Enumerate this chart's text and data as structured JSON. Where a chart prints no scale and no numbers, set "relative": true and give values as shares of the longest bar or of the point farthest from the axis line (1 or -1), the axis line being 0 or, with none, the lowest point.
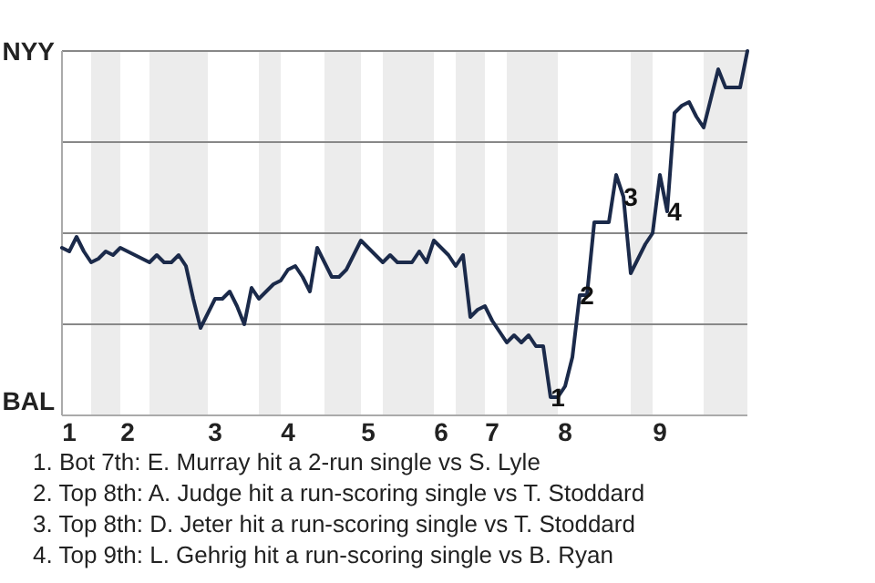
{
  "chart_data": {
    "type": "line",
    "relative": true,
    "grid": true,
    "marker": "none",
    "line_style": "solid",
    "categories": [
      null,
      "1",
      null,
      null,
      null,
      null,
      null,
      null,
      null,
      "2",
      null,
      null,
      null,
      null,
      null,
      null,
      null,
      null,
      null,
      null,
      null,
      "3",
      null,
      null,
      null,
      null,
      null,
      null,
      null,
      null,
      null,
      "4",
      null,
      null,
      null,
      null,
      null,
      null,
      null,
      null,
      null,
      null,
      "5",
      null,
      null,
      null,
      null,
      null,
      null,
      null,
      null,
      null,
      "6",
      null,
      null,
      null,
      null,
      null,
      null,
      "7",
      null,
      null,
      null,
      null,
      null,
      null,
      null,
      null,
      null,
      "8",
      null,
      null,
      null,
      null,
      null,
      null,
      null,
      null,
      null,
      null,
      null,
      null,
      "9",
      null,
      null,
      null,
      null,
      null,
      null,
      null,
      null,
      null,
      null,
      null,
      null
    ],
    "series": [
      {
        "color": "#1b2a4a",
        "values": [
          0.46,
          0.45,
          0.49,
          0.45,
          0.42,
          0.43,
          0.45,
          0.44,
          0.46,
          0.45,
          0.44,
          0.43,
          0.42,
          0.44,
          0.42,
          0.42,
          0.44,
          0.41,
          0.32,
          0.24,
          0.28,
          0.32,
          0.32,
          0.34,
          0.3,
          0.25,
          0.35,
          0.32,
          0.34,
          0.36,
          0.37,
          0.4,
          0.41,
          0.38,
          0.34,
          0.46,
          0.42,
          0.38,
          0.38,
          0.4,
          0.44,
          0.48,
          0.46,
          0.44,
          0.42,
          0.44,
          0.42,
          0.42,
          0.42,
          0.45,
          0.42,
          0.48,
          0.46,
          0.44,
          0.41,
          0.44,
          0.27,
          0.29,
          0.3,
          0.26,
          0.23,
          0.2,
          0.22,
          0.2,
          0.22,
          0.19,
          0.19,
          0.05,
          0.05,
          0.08,
          0.16,
          0.33,
          0.33,
          0.53,
          0.53,
          0.53,
          0.66,
          0.6,
          0.39,
          0.43,
          0.47,
          0.5,
          0.66,
          0.56,
          0.83,
          0.85,
          0.86,
          0.82,
          0.79,
          0.87,
          0.95,
          0.9,
          0.9,
          0.9,
          1
        ]
      }
    ],
    "annotations": [
      "NYY",
      "BAL",
      {
        "text": "1",
        "y": 0.05
      },
      {
        "text": "2",
        "y": 0.33
      },
      {
        "text": "3",
        "y": 0.6
      },
      {
        "text": "4",
        "y": 0.56
      },
      "1. Bot 7th: E. Murray hit a 2-run single vs S. Lyle",
      "2. Top 8th: A. Judge hit a run-scoring single vs T. Stoddard",
      "3. Top 8th: D. Jeter hit a run-scoring single vs T. Stoddard",
      "4. Top 9th: L. Gehrig hit a run-scoring single vs B. Ryan"
    ]
  }
}
